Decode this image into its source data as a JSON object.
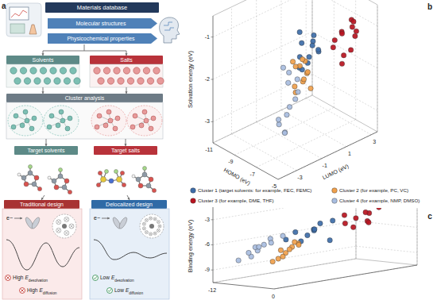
{
  "diagram": {
    "label": "a",
    "database": "Materials database",
    "items": [
      "Molecular structures",
      "Physicochemical properties"
    ],
    "groups": [
      "Solvents",
      "Salts"
    ],
    "analysis": "Cluster analysis",
    "targets": [
      "Target solvents",
      "Target salts"
    ],
    "designs": [
      {
        "title": "Traditional design",
        "electron": "e−",
        "barriers": [
          {
            "level": "High",
            "symbol": "E",
            "subscript": "desolvation"
          },
          {
            "level": "High",
            "symbol": "E",
            "subscript": "diffusion"
          }
        ]
      },
      {
        "title": "Delocalized design",
        "electron": "e−",
        "barriers": [
          {
            "level": "Low",
            "symbol": "E",
            "subscript": "desolvation"
          },
          {
            "level": "Low",
            "symbol": "E",
            "subscript": "diffusion"
          }
        ]
      }
    ]
  },
  "chart_data": [
    {
      "type": "scatter3d",
      "label": "b",
      "xlabel": "HOMO (eV)",
      "ylabel": "LUMO (eV)",
      "zlabel": "Solvation energy (eV)",
      "xlim": [
        -11,
        -5
      ],
      "xticks": [
        -11,
        -9,
        -7,
        -5
      ],
      "ylim": [
        -4.5,
        3.5
      ],
      "yticks": [
        -3,
        -1,
        1,
        3
      ],
      "zlim": [
        -3.5,
        -0.5
      ],
      "zticks": [
        -1,
        -2,
        -3
      ],
      "grid": true,
      "marker": "circle",
      "legend": "bottom",
      "series": [
        {
          "name": "Cluster 1 (target solvents: for example, FEC, FEMC)",
          "color": "#3d6ca8",
          "x": [
            -8.2,
            -7.8,
            -7.5,
            -7.9,
            -7.3,
            -8.5,
            -7.1,
            -7.6,
            -8.0,
            -7.4,
            -6.9,
            -7.7
          ],
          "y": [
            0.2,
            -0.3,
            0.5,
            0.8,
            -0.1,
            0.3,
            0.6,
            -0.5,
            1.0,
            0.1,
            0.4,
            -0.2
          ],
          "z": [
            -1.4,
            -1.6,
            -1.3,
            -1.5,
            -1.7,
            -1.2,
            -1.5,
            -1.8,
            -1.3,
            -1.6,
            -1.4,
            -1.9
          ]
        },
        {
          "name": "Cluster 2 (for example, PC, VC)",
          "color": "#f0a04b",
          "x": [
            -7.0,
            -6.8,
            -7.3,
            -6.5,
            -6.9,
            -7.2,
            -6.6,
            -7.5,
            -6.7,
            -7.1,
            -6.4,
            -6.8
          ],
          "y": [
            -1.0,
            -0.6,
            -1.3,
            -0.8,
            -1.5,
            -0.4,
            -1.1,
            -0.9,
            -1.6,
            -0.7,
            -1.2,
            -0.3
          ],
          "z": [
            -1.6,
            -1.8,
            -1.5,
            -1.7,
            -2.0,
            -1.6,
            -1.9,
            -1.7,
            -2.1,
            -1.5,
            -1.8,
            -2.2
          ]
        },
        {
          "name": "Cluster 3 (for example, DME, THF)",
          "color": "#b8131f",
          "x": [
            -6.0,
            -5.6,
            -6.3,
            -5.8,
            -5.5,
            -6.1,
            -5.9,
            -5.7,
            -6.4,
            -5.4,
            -6.2,
            -5.8
          ],
          "y": [
            1.5,
            2.0,
            1.2,
            2.5,
            1.8,
            0.9,
            2.2,
            1.4,
            2.8,
            1.0,
            1.7,
            2.4
          ],
          "z": [
            -1.0,
            -0.9,
            -1.2,
            -1.1,
            -1.4,
            -1.3,
            -0.8,
            -1.5,
            -1.0,
            -1.6,
            -1.1,
            -1.2
          ]
        },
        {
          "name": "Cluster 4 (for example, NMP, DMSO)",
          "color": "#a8bde0",
          "x": [
            -7.5,
            -6.8,
            -8.0,
            -7.2,
            -6.5,
            -7.8,
            -7.0,
            -8.3,
            -6.9,
            -7.4,
            -7.7,
            -6.6
          ],
          "y": [
            -1.5,
            -2.0,
            -1.0,
            -2.5,
            -1.8,
            -0.5,
            -2.2,
            -1.2,
            -2.8,
            -0.8,
            -1.6,
            -2.4
          ],
          "z": [
            -2.0,
            -2.4,
            -1.9,
            -2.8,
            -2.2,
            -2.1,
            -3.0,
            -1.8,
            -2.6,
            -2.3,
            -3.2,
            -2.5
          ]
        }
      ]
    },
    {
      "type": "scatter3d",
      "label": "c",
      "zlabel": "Binding energy (eV)",
      "xlim": [
        -12,
        0
      ],
      "xticks": [
        -12,
        0
      ],
      "ylim": [
        -4,
        4
      ],
      "yticks": [],
      "zlim": [
        -10.5,
        -1.5
      ],
      "zticks": [
        -3,
        -6,
        -9
      ],
      "grid": true,
      "marker": "circle",
      "series": [
        {
          "color": "#3d6ca8",
          "x": [
            -8,
            -7.5,
            -8.5,
            -7,
            -9,
            -7.8,
            -8.2,
            -6.8,
            -7.3,
            -8.8
          ],
          "y": [
            0.5,
            0,
            1,
            -0.5,
            0.8,
            1.5,
            -1,
            0.2,
            1.2,
            -0.3
          ],
          "z": [
            -5.5,
            -6.0,
            -5.0,
            -6.5,
            -5.8,
            -4.8,
            -6.2,
            -5.3,
            -7.0,
            -5.6
          ]
        },
        {
          "color": "#f0a04b",
          "x": [
            -7,
            -6.5,
            -7.5,
            -6.2,
            -6.8,
            -7.2,
            -6,
            -7.8,
            -6.6,
            -7.1
          ],
          "y": [
            -1,
            -1.5,
            -0.5,
            -2,
            -1.2,
            -0.8,
            -1.8,
            -1.4,
            -2.2,
            -0.6
          ],
          "z": [
            -7.0,
            -7.5,
            -6.8,
            -8.0,
            -7.2,
            -6.5,
            -7.8,
            -7.3,
            -8.3,
            -6.9
          ]
        },
        {
          "color": "#b8131f",
          "x": [
            -5,
            -4.5,
            -5.5,
            -4,
            -4.8,
            -5.2,
            -3.8,
            -4.3,
            -5.8,
            -4.6
          ],
          "y": [
            2,
            2.5,
            1.5,
            3,
            1.8,
            2.8,
            2.2,
            1.2,
            3.2,
            2.6
          ],
          "z": [
            -4.5,
            -5.0,
            -4.0,
            -3.5,
            -5.5,
            -4.2,
            -3.8,
            -4.8,
            -3.2,
            -5.2
          ]
        },
        {
          "color": "#a8bde0",
          "x": [
            -9,
            -8.5,
            -9.5,
            -8,
            -10,
            -8.8,
            -9.2,
            -8.3,
            -9.8,
            -8.6
          ],
          "y": [
            -2,
            -2.5,
            -1.5,
            -3,
            -2.2,
            -1,
            -2.8,
            -1.8,
            -3.2,
            -2.4
          ],
          "z": [
            -6.5,
            -7.0,
            -6.0,
            -7.5,
            -6.8,
            -5.8,
            -7.2,
            -6.3,
            -8.0,
            -6.6
          ]
        }
      ]
    }
  ]
}
